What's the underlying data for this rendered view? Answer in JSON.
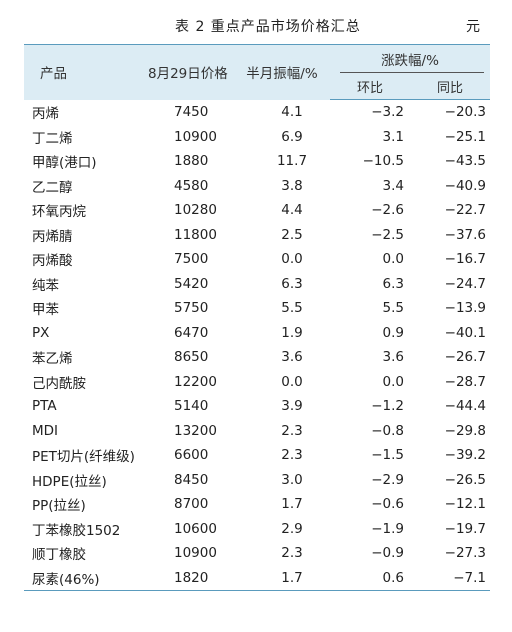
{
  "caption": {
    "title": "表 2  重点产品市场价格汇总",
    "unit": "元"
  },
  "headers": {
    "product": "产品",
    "price": "8月29日价格",
    "swing": "半月振幅/%",
    "change": "涨跌幅/%",
    "mom": "环比",
    "yoy": "同比"
  },
  "rows": [
    {
      "name": "丙烯",
      "price": "7450",
      "swing": "4.1",
      "mom": "−3.2",
      "yoy": "−20.3"
    },
    {
      "name": "丁二烯",
      "price": "10900",
      "swing": "6.9",
      "mom": "3.1",
      "yoy": "−25.1"
    },
    {
      "name": "甲醇(港口)",
      "price": "1880",
      "swing": "11.7",
      "mom": "−10.5",
      "yoy": "−43.5"
    },
    {
      "name": "乙二醇",
      "price": "4580",
      "swing": "3.8",
      "mom": "3.4",
      "yoy": "−40.9"
    },
    {
      "name": "环氧丙烷",
      "price": "10280",
      "swing": "4.4",
      "mom": "−2.6",
      "yoy": "−22.7"
    },
    {
      "name": "丙烯腈",
      "price": "11800",
      "swing": "2.5",
      "mom": "−2.5",
      "yoy": "−37.6"
    },
    {
      "name": "丙烯酸",
      "price": "7500",
      "swing": "0.0",
      "mom": "0.0",
      "yoy": "−16.7"
    },
    {
      "name": "纯苯",
      "price": "5420",
      "swing": "6.3",
      "mom": "6.3",
      "yoy": "−24.7"
    },
    {
      "name": "甲苯",
      "price": "5750",
      "swing": "5.5",
      "mom": "5.5",
      "yoy": "−13.9"
    },
    {
      "name": "PX",
      "price": "6470",
      "swing": "1.9",
      "mom": "0.9",
      "yoy": "−40.1"
    },
    {
      "name": "苯乙烯",
      "price": "8650",
      "swing": "3.6",
      "mom": "3.6",
      "yoy": "−26.7"
    },
    {
      "name": "己内酰胺",
      "price": "12200",
      "swing": "0.0",
      "mom": "0.0",
      "yoy": "−28.7"
    },
    {
      "name": "PTA",
      "price": "5140",
      "swing": "3.9",
      "mom": "−1.2",
      "yoy": "−44.4"
    },
    {
      "name": "MDI",
      "price": "13200",
      "swing": "2.3",
      "mom": "−0.8",
      "yoy": "−29.8"
    },
    {
      "name": "PET切片(纤维级)",
      "price": "6600",
      "swing": "2.3",
      "mom": "−1.5",
      "yoy": "−39.2"
    },
    {
      "name": "HDPE(拉丝)",
      "price": "8450",
      "swing": "3.0",
      "mom": "−2.9",
      "yoy": "−26.5"
    },
    {
      "name": "PP(拉丝)",
      "price": "8700",
      "swing": "1.7",
      "mom": "−0.6",
      "yoy": "−12.1"
    },
    {
      "name": "丁苯橡胶1502",
      "price": "10600",
      "swing": "2.9",
      "mom": "−1.9",
      "yoy": "−19.7"
    },
    {
      "name": "顺丁橡胶",
      "price": "10900",
      "swing": "2.3",
      "mom": "−0.9",
      "yoy": "−27.3"
    },
    {
      "name": "尿素(46%)",
      "price": "1820",
      "swing": "1.7",
      "mom": "0.6",
      "yoy": "−7.1"
    }
  ]
}
